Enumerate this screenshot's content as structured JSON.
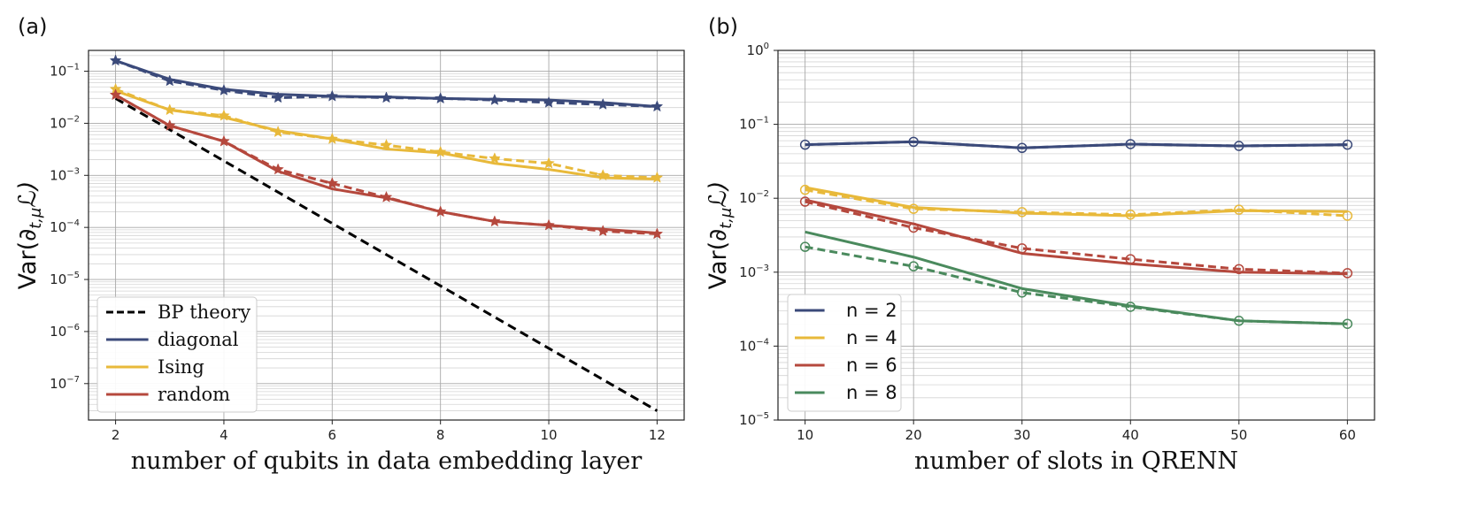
{
  "colors": {
    "diagonal": "#3b4a7a",
    "ising": "#e8b93a",
    "random": "#b5483d",
    "green": "#4a8a5d",
    "theory": "#000000"
  },
  "chart_data": [
    {
      "panel_label": "(a)",
      "type": "line",
      "xlabel": "number of qubits in data embedding layer",
      "ylabel_main": "Var(∂",
      "ylabel_sub": "t,μ",
      "ylabel_end": "ℒ)",
      "yscale": "log",
      "xlim": [
        1.5,
        12.5
      ],
      "ylim_exp": [
        -7.7,
        -0.6
      ],
      "x_ticks": [
        2,
        4,
        6,
        8,
        10,
        12
      ],
      "y_ticks": [
        {
          "base": "10",
          "exp": "−1",
          "value": -1
        },
        {
          "base": "10",
          "exp": "−2",
          "value": -2
        },
        {
          "base": "10",
          "exp": "−3",
          "value": -3
        },
        {
          "base": "10",
          "exp": "−4",
          "value": -4
        },
        {
          "base": "10",
          "exp": "−5",
          "value": -5
        },
        {
          "base": "10",
          "exp": "−6",
          "value": -6
        },
        {
          "base": "10",
          "exp": "−7",
          "value": -7
        }
      ],
      "legend": {
        "placement": "lower-left",
        "entries": [
          {
            "label": "BP theory",
            "color_key": "theory",
            "style": "dashed"
          },
          {
            "label": "diagonal",
            "color_key": "diagonal",
            "style": "solid"
          },
          {
            "label": "Ising",
            "color_key": "ising",
            "style": "solid"
          },
          {
            "label": "random",
            "color_key": "random",
            "style": "solid"
          }
        ]
      },
      "series": [
        {
          "name": "BP theory",
          "color_key": "theory",
          "style": "dashed",
          "marker": "none",
          "x": [
            2,
            12
          ],
          "y": [
            0.03,
            3e-08
          ]
        },
        {
          "name": "diagonal",
          "color_key": "diagonal",
          "style": "solid",
          "marker": "none",
          "x": [
            2,
            3,
            4,
            5,
            6,
            7,
            8,
            9,
            10,
            11,
            12
          ],
          "y": [
            0.16,
            0.07,
            0.045,
            0.036,
            0.033,
            0.032,
            0.03,
            0.029,
            0.028,
            0.025,
            0.021
          ]
        },
        {
          "name": "diagonal (dashed)",
          "color_key": "diagonal",
          "style": "dashed",
          "marker": "star",
          "x": [
            2,
            3,
            4,
            5,
            6,
            7,
            8,
            9,
            10,
            11,
            12
          ],
          "y": [
            0.16,
            0.065,
            0.043,
            0.031,
            0.033,
            0.031,
            0.03,
            0.028,
            0.025,
            0.023,
            0.021
          ]
        },
        {
          "name": "Ising",
          "color_key": "ising",
          "style": "solid",
          "marker": "none",
          "x": [
            2,
            3,
            4,
            5,
            6,
            7,
            8,
            9,
            10,
            11,
            12
          ],
          "y": [
            0.042,
            0.018,
            0.013,
            0.0072,
            0.005,
            0.0032,
            0.0027,
            0.0017,
            0.0013,
            0.0009,
            0.00085
          ]
        },
        {
          "name": "Ising (dashed)",
          "color_key": "ising",
          "style": "dashed",
          "marker": "star",
          "x": [
            2,
            3,
            4,
            5,
            6,
            7,
            8,
            9,
            10,
            11,
            12
          ],
          "y": [
            0.045,
            0.018,
            0.014,
            0.0068,
            0.005,
            0.0038,
            0.0028,
            0.0021,
            0.0017,
            0.001,
            0.0009
          ]
        },
        {
          "name": "random",
          "color_key": "random",
          "style": "solid",
          "marker": "none",
          "x": [
            2,
            3,
            4,
            5,
            6,
            7,
            8,
            9,
            10,
            11,
            12
          ],
          "y": [
            0.035,
            0.009,
            0.0045,
            0.0012,
            0.00055,
            0.00037,
            0.0002,
            0.00013,
            0.00011,
            9.2e-05,
            7.8e-05
          ]
        },
        {
          "name": "random (dashed)",
          "color_key": "random",
          "style": "dashed",
          "marker": "star",
          "x": [
            2,
            3,
            4,
            5,
            6,
            7,
            8,
            9,
            10,
            11,
            12
          ],
          "y": [
            0.035,
            0.009,
            0.0045,
            0.0013,
            0.0007,
            0.00038,
            0.0002,
            0.00013,
            0.00011,
            8.5e-05,
            7.5e-05
          ]
        }
      ]
    },
    {
      "panel_label": "(b)",
      "type": "line",
      "xlabel": "number of slots in QRENN",
      "ylabel_main": "Var(∂",
      "ylabel_sub": "t,μ",
      "ylabel_end": "ℒ)",
      "yscale": "log",
      "xlim": [
        7.5,
        62.5
      ],
      "ylim_exp": [
        -5,
        0
      ],
      "x_ticks": [
        10,
        20,
        30,
        40,
        50,
        60
      ],
      "y_ticks": [
        {
          "base": "10",
          "exp": "0",
          "value": 0
        },
        {
          "base": "10",
          "exp": "−1",
          "value": -1
        },
        {
          "base": "10",
          "exp": "−2",
          "value": -2
        },
        {
          "base": "10",
          "exp": "−3",
          "value": -3
        },
        {
          "base": "10",
          "exp": "−4",
          "value": -4
        },
        {
          "base": "10",
          "exp": "−5",
          "value": -5
        }
      ],
      "legend": {
        "placement": "lower-left",
        "entries": [
          {
            "label": "n = 2",
            "color_key": "diagonal",
            "style": "solid"
          },
          {
            "label": "n = 4",
            "color_key": "ising",
            "style": "solid"
          },
          {
            "label": "n = 6",
            "color_key": "random",
            "style": "solid"
          },
          {
            "label": "n = 8",
            "color_key": "green",
            "style": "solid"
          }
        ]
      },
      "series": [
        {
          "name": "n = 2",
          "color_key": "diagonal",
          "style": "solid",
          "marker": "none",
          "x": [
            10,
            20,
            30,
            40,
            50,
            60
          ],
          "y": [
            0.053,
            0.058,
            0.048,
            0.054,
            0.051,
            0.053
          ]
        },
        {
          "name": "n = 2 (dashed)",
          "color_key": "diagonal",
          "style": "dashed",
          "marker": "circle",
          "x": [
            10,
            20,
            30,
            40,
            50,
            60
          ],
          "y": [
            0.053,
            0.058,
            0.048,
            0.054,
            0.051,
            0.053
          ]
        },
        {
          "name": "n = 4",
          "color_key": "ising",
          "style": "solid",
          "marker": "none",
          "x": [
            10,
            20,
            30,
            40,
            50,
            60
          ],
          "y": [
            0.014,
            0.0075,
            0.0063,
            0.0058,
            0.0068,
            0.0066
          ]
        },
        {
          "name": "n = 4 (dashed)",
          "color_key": "ising",
          "style": "dashed",
          "marker": "circle",
          "x": [
            10,
            20,
            30,
            40,
            50,
            60
          ],
          "y": [
            0.013,
            0.0072,
            0.0065,
            0.006,
            0.007,
            0.0058
          ]
        },
        {
          "name": "n = 6",
          "color_key": "random",
          "style": "solid",
          "marker": "none",
          "x": [
            10,
            20,
            30,
            40,
            50,
            60
          ],
          "y": [
            0.0095,
            0.0045,
            0.0018,
            0.0013,
            0.001,
            0.00095
          ]
        },
        {
          "name": "n = 6 (dashed)",
          "color_key": "random",
          "style": "dashed",
          "marker": "circle",
          "x": [
            10,
            20,
            30,
            40,
            50,
            60
          ],
          "y": [
            0.009,
            0.004,
            0.0021,
            0.0015,
            0.0011,
            0.00097
          ]
        },
        {
          "name": "n = 8",
          "color_key": "green",
          "style": "solid",
          "marker": "none",
          "x": [
            10,
            20,
            30,
            40,
            50,
            60
          ],
          "y": [
            0.0035,
            0.0016,
            0.0006,
            0.00035,
            0.00022,
            0.0002
          ]
        },
        {
          "name": "n = 8 (dashed)",
          "color_key": "green",
          "style": "dashed",
          "marker": "circle",
          "x": [
            10,
            20,
            30,
            40,
            50,
            60
          ],
          "y": [
            0.0022,
            0.0012,
            0.00053,
            0.00034,
            0.00022,
            0.0002
          ]
        }
      ]
    }
  ]
}
